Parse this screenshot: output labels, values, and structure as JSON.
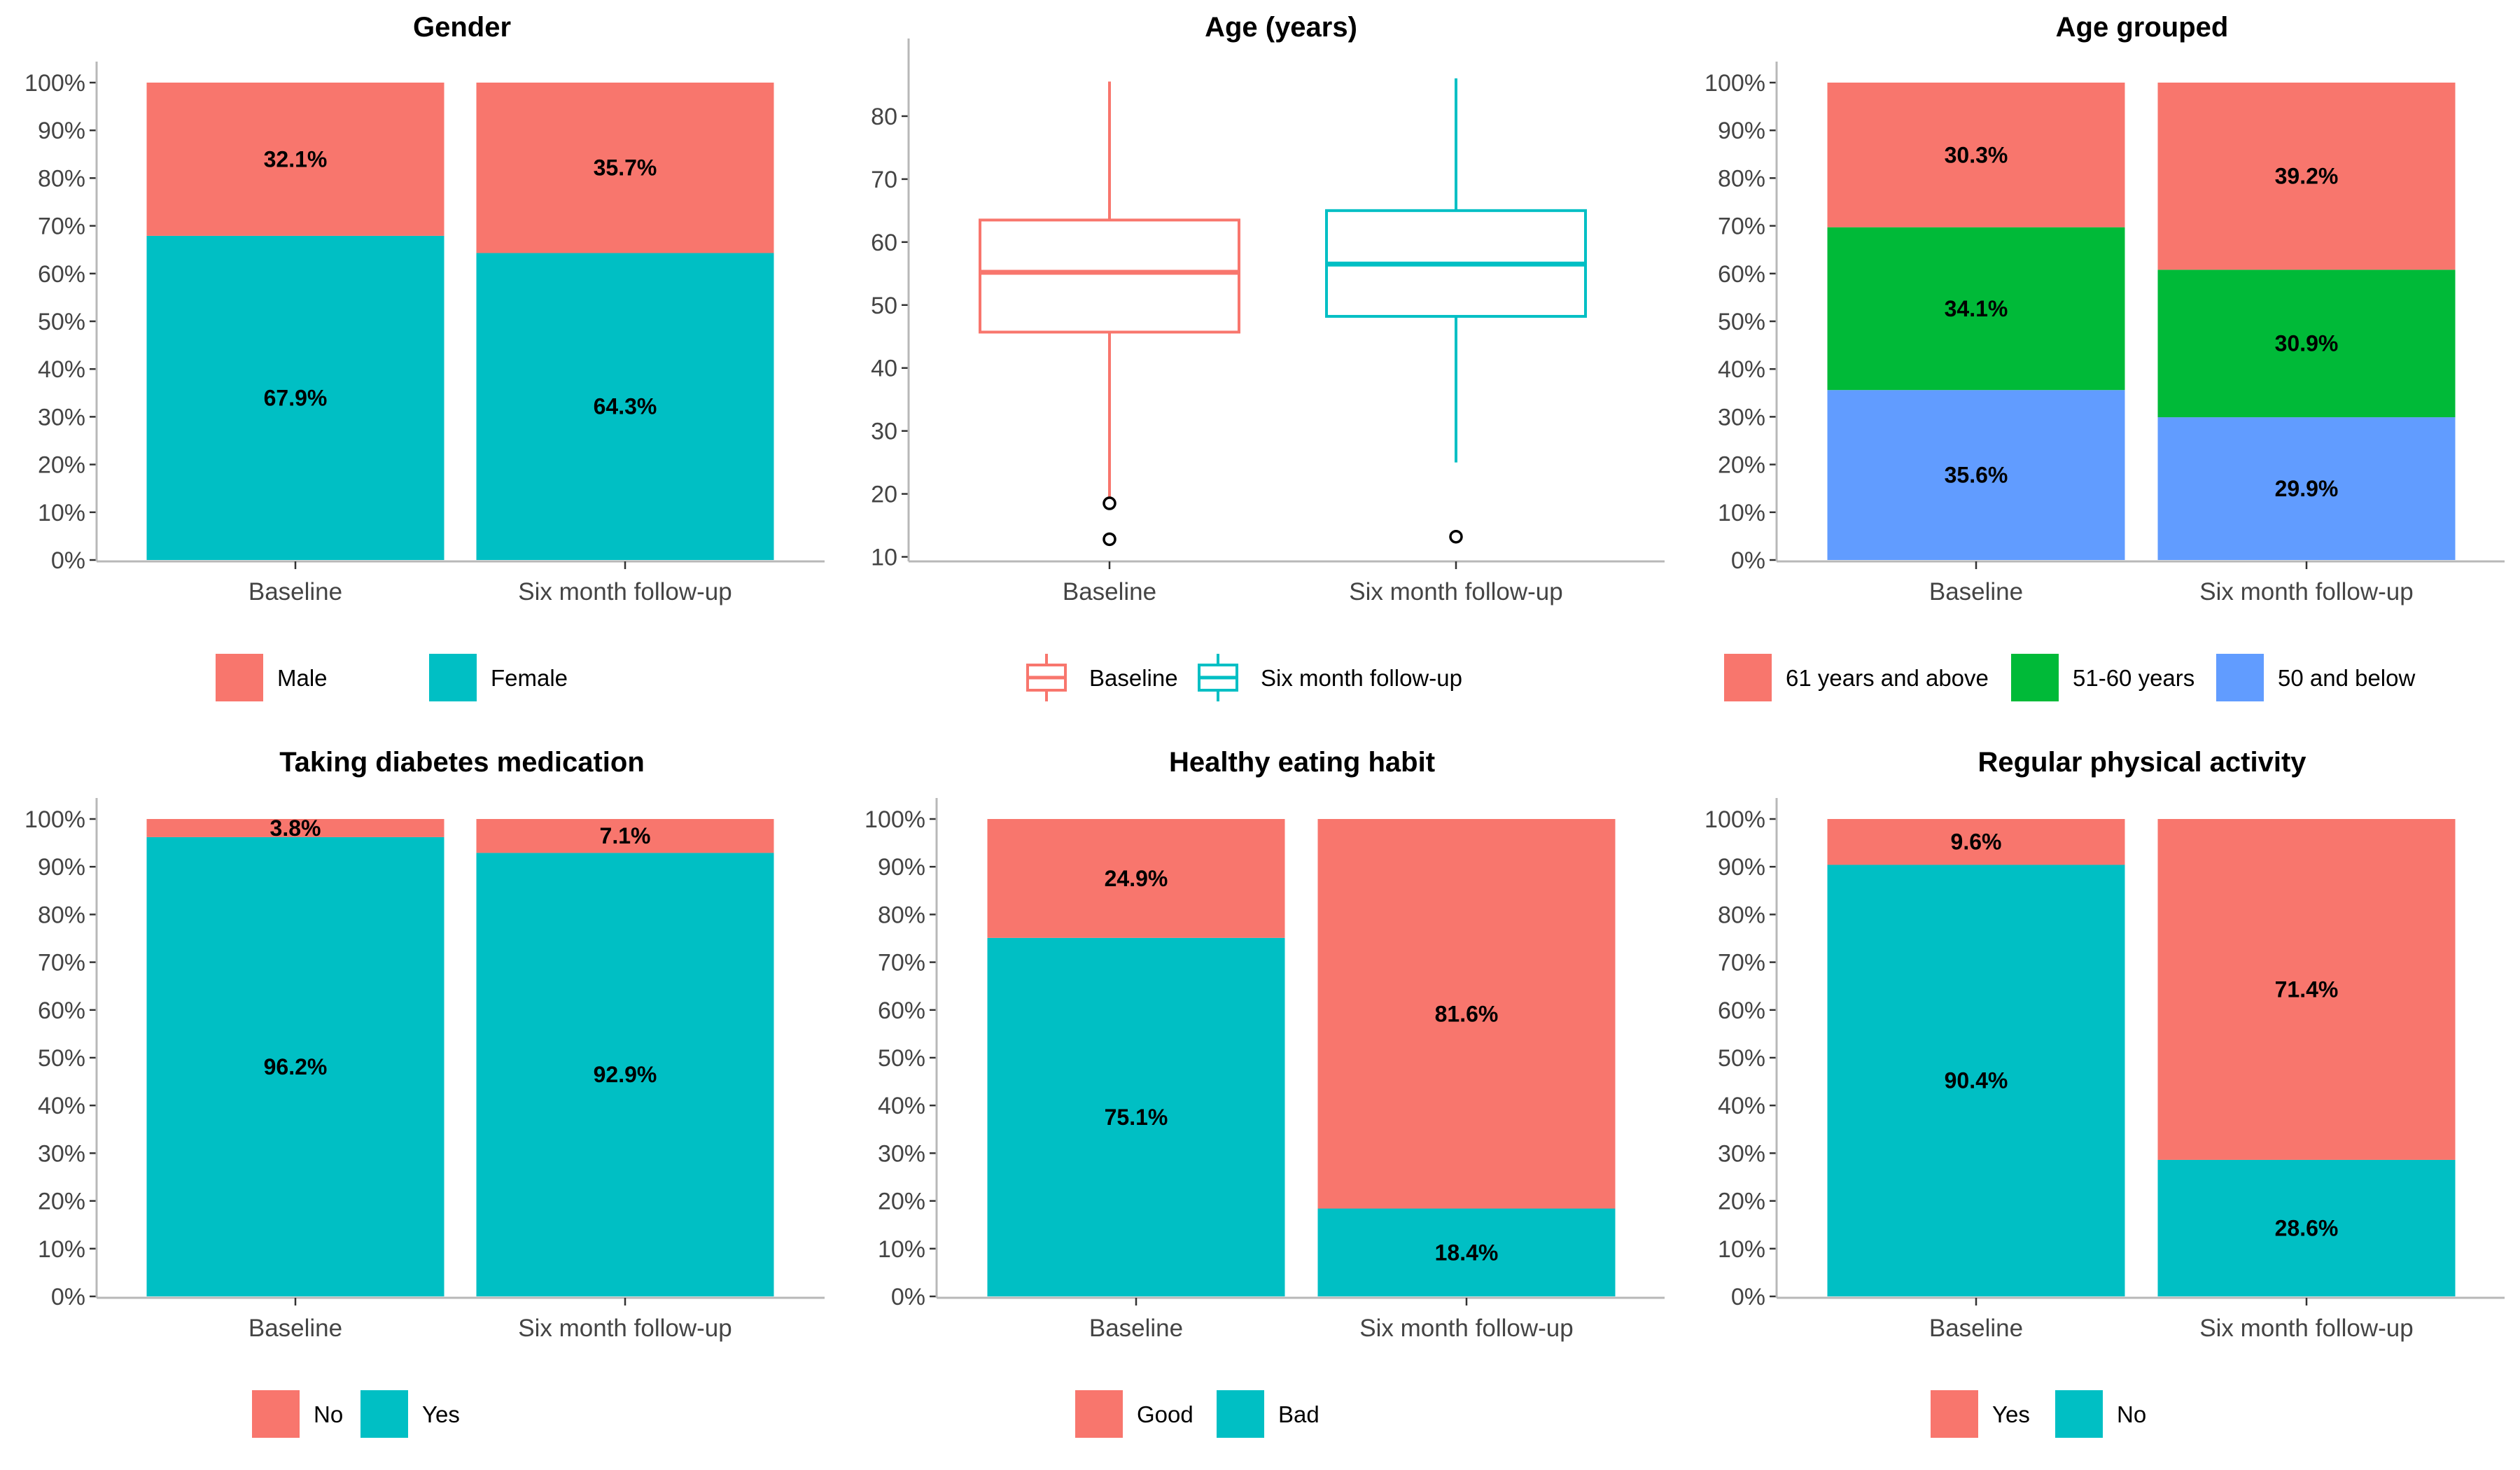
{
  "colors": {
    "red": "#F8766D",
    "teal": "#00BFC4",
    "green": "#00BA38",
    "blue": "#619CFF",
    "axis": "#B8B8B8",
    "tick_text": "#444444"
  },
  "chart_data": [
    {
      "type": "bar",
      "stacked": true,
      "title": "Gender",
      "categories": [
        "Baseline",
        "Six month follow-up"
      ],
      "series": [
        {
          "name": "Female",
          "values": [
            67.9,
            64.3
          ],
          "labels": [
            "67.9%",
            "64.3%"
          ],
          "color": "#00BFC4"
        },
        {
          "name": "Male",
          "values": [
            32.1,
            35.7
          ],
          "labels": [
            "32.1%",
            "35.7%"
          ],
          "color": "#F8766D"
        }
      ],
      "legend_order": [
        "Male",
        "Female"
      ],
      "ylim": [
        0,
        100
      ],
      "yticks": [
        0,
        10,
        20,
        30,
        40,
        50,
        60,
        70,
        80,
        90,
        100
      ],
      "ytick_labels": [
        "0%",
        "10%",
        "20%",
        "30%",
        "40%",
        "50%",
        "60%",
        "70%",
        "80%",
        "90%",
        "100%"
      ],
      "legend_position": "bottom",
      "grid": false
    },
    {
      "type": "box",
      "title": "Age (years)",
      "categories": [
        "Baseline",
        "Six month follow-up"
      ],
      "series": [
        {
          "name": "Baseline",
          "color": "#F8766D",
          "whisker_low": 18.5,
          "q1": 45.7,
          "median": 55.2,
          "q3": 63.5,
          "whisker_high": 85.5,
          "outliers": [
            18.5,
            12.8
          ]
        },
        {
          "name": "Six month follow-up",
          "color": "#00BFC4",
          "whisker_low": 25,
          "q1": 48.2,
          "median": 56.5,
          "q3": 65,
          "whisker_high": 86,
          "outliers": [
            13.2
          ]
        }
      ],
      "legend_order": [
        "Baseline",
        "Six month follow-up"
      ],
      "ylim": [
        9.5,
        89
      ],
      "yticks": [
        10,
        20,
        30,
        40,
        50,
        60,
        70,
        80
      ],
      "ytick_labels": [
        "10",
        "20",
        "30",
        "40",
        "50",
        "60",
        "70",
        "80"
      ],
      "legend_position": "bottom",
      "grid": false
    },
    {
      "type": "bar",
      "stacked": true,
      "title": "Age grouped",
      "categories": [
        "Baseline",
        "Six month follow-up"
      ],
      "series": [
        {
          "name": "50 and below",
          "values": [
            35.6,
            29.9
          ],
          "labels": [
            "35.6%",
            "29.9%"
          ],
          "color": "#619CFF"
        },
        {
          "name": "51-60 years",
          "values": [
            34.1,
            30.9
          ],
          "labels": [
            "34.1%",
            "30.9%"
          ],
          "color": "#00BA38"
        },
        {
          "name": "61 years and above",
          "values": [
            30.3,
            39.2
          ],
          "labels": [
            "30.3%",
            "39.2%"
          ],
          "color": "#F8766D"
        }
      ],
      "legend_order": [
        "61 years and above",
        "51-60 years",
        "50 and below"
      ],
      "ylim": [
        0,
        100
      ],
      "yticks": [
        0,
        10,
        20,
        30,
        40,
        50,
        60,
        70,
        80,
        90,
        100
      ],
      "ytick_labels": [
        "0%",
        "10%",
        "20%",
        "30%",
        "40%",
        "50%",
        "60%",
        "70%",
        "80%",
        "90%",
        "100%"
      ],
      "legend_position": "bottom",
      "grid": false
    },
    {
      "type": "bar",
      "stacked": true,
      "title": "Taking diabetes medication",
      "categories": [
        "Baseline",
        "Six month follow-up"
      ],
      "series": [
        {
          "name": "Yes",
          "values": [
            96.2,
            92.9
          ],
          "labels": [
            "96.2%",
            "92.9%"
          ],
          "color": "#00BFC4"
        },
        {
          "name": "No",
          "values": [
            3.8,
            7.1
          ],
          "labels": [
            "3.8%",
            "7.1%"
          ],
          "color": "#F8766D"
        }
      ],
      "legend_order": [
        "No",
        "Yes"
      ],
      "ylim": [
        0,
        100
      ],
      "yticks": [
        0,
        10,
        20,
        30,
        40,
        50,
        60,
        70,
        80,
        90,
        100
      ],
      "ytick_labels": [
        "0%",
        "10%",
        "20%",
        "30%",
        "40%",
        "50%",
        "60%",
        "70%",
        "80%",
        "90%",
        "100%"
      ],
      "legend_position": "bottom",
      "grid": false
    },
    {
      "type": "bar",
      "stacked": true,
      "title": "Healthy eating habit",
      "categories": [
        "Baseline",
        "Six month follow-up"
      ],
      "series": [
        {
          "name": "Bad",
          "values": [
            75.1,
            18.4
          ],
          "labels": [
            "75.1%",
            "18.4%"
          ],
          "color": "#00BFC4"
        },
        {
          "name": "Good",
          "values": [
            24.9,
            81.6
          ],
          "labels": [
            "24.9%",
            "81.6%"
          ],
          "color": "#F8766D"
        }
      ],
      "legend_order": [
        "Good",
        "Bad"
      ],
      "ylim": [
        0,
        100
      ],
      "yticks": [
        0,
        10,
        20,
        30,
        40,
        50,
        60,
        70,
        80,
        90,
        100
      ],
      "ytick_labels": [
        "0%",
        "10%",
        "20%",
        "30%",
        "40%",
        "50%",
        "60%",
        "70%",
        "80%",
        "90%",
        "100%"
      ],
      "legend_position": "bottom",
      "grid": false
    },
    {
      "type": "bar",
      "stacked": true,
      "title": "Regular physical activity",
      "categories": [
        "Baseline",
        "Six month follow-up"
      ],
      "series": [
        {
          "name": "No",
          "values": [
            90.4,
            28.6
          ],
          "labels": [
            "90.4%",
            "28.6%"
          ],
          "color": "#00BFC4"
        },
        {
          "name": "Yes",
          "values": [
            9.6,
            71.4
          ],
          "labels": [
            "9.6%",
            "71.4%"
          ],
          "color": "#F8766D"
        }
      ],
      "legend_order": [
        "Yes",
        "No"
      ],
      "ylim": [
        0,
        100
      ],
      "yticks": [
        0,
        10,
        20,
        30,
        40,
        50,
        60,
        70,
        80,
        90,
        100
      ],
      "ytick_labels": [
        "0%",
        "10%",
        "20%",
        "30%",
        "40%",
        "50%",
        "60%",
        "70%",
        "80%",
        "90%",
        "100%"
      ],
      "legend_position": "bottom",
      "grid": false
    }
  ]
}
